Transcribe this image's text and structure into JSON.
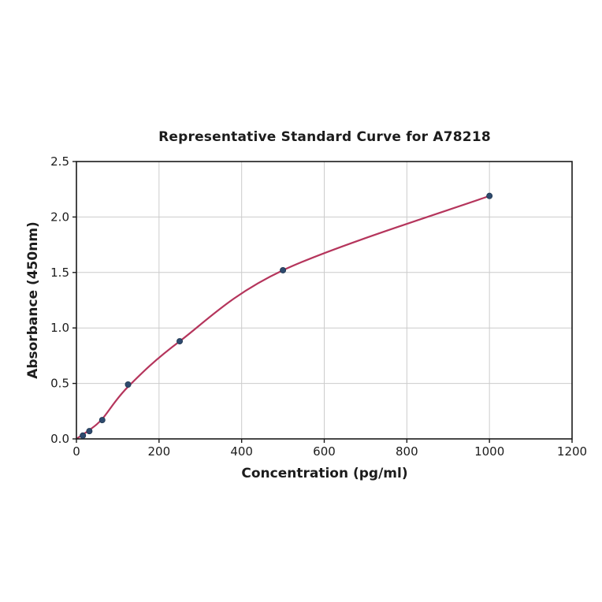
{
  "figure": {
    "title": "Representative Standard Curve for A78218"
  },
  "chart_data": {
    "type": "scatter",
    "title": "Representative Standard Curve for A78218",
    "xlabel": "Concentration (pg/ml)",
    "ylabel": "Absorbance (450nm)",
    "xlim": [
      0,
      1200
    ],
    "ylim": [
      0,
      2.5
    ],
    "xticks": [
      0,
      200,
      400,
      600,
      800,
      1000,
      1200
    ],
    "yticks": [
      0,
      0.5,
      1,
      1.5,
      2,
      2.5
    ],
    "grid": true,
    "legend_position": "none",
    "points": {
      "name": "standard-dilutions",
      "x": [
        15.6,
        31.25,
        62.5,
        125,
        250,
        500,
        1000
      ],
      "y": [
        0.03,
        0.07,
        0.17,
        0.49,
        0.88,
        1.52,
        2.19
      ]
    },
    "fit_curve": {
      "name": "4pl-fit-line",
      "x": [
        0,
        15.6,
        31.25,
        62.5,
        125,
        250,
        500,
        1000
      ],
      "y": [
        0.0,
        0.04,
        0.08,
        0.18,
        0.47,
        0.88,
        1.52,
        2.19
      ]
    },
    "colors": {
      "marker_fill": "#2e4a6e",
      "marker_edge": "#203750",
      "curve": "#b5355c",
      "grid": "#cccccc",
      "spine": "#1a1a1a",
      "text": "#1c1c1c",
      "background": "#ffffff"
    }
  }
}
